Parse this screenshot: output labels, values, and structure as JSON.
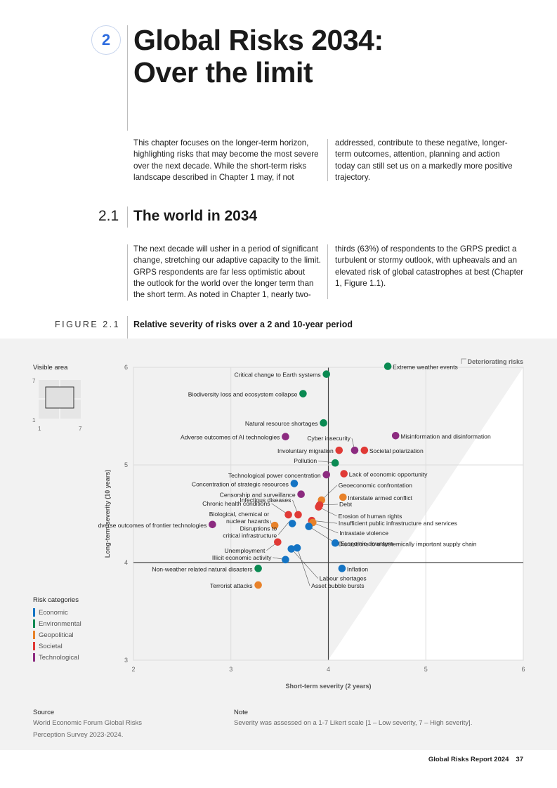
{
  "chapter": {
    "number": "2",
    "title_line1": "Global Risks 2034:",
    "title_line2": "Over the limit"
  },
  "intro": {
    "left": [
      "This chapter focuses on the longer-term horizon,",
      "highlighting risks that may become the most severe",
      "over the next decade. While the short-term risks",
      "landscape described in Chapter 1 may, if not"
    ],
    "right": [
      "addressed, contribute to these negative, longer-",
      "term outcomes, attention, planning and action",
      "today can still set us on a markedly more positive",
      "trajectory."
    ]
  },
  "section": {
    "number": "2.1",
    "title": "The world in 2034",
    "left": [
      "The next decade will usher in a period of significant",
      "change, stretching our adaptive capacity to the limit.",
      "GRPS respondents are far less optimistic about",
      "the outlook for the world over the longer term than",
      "the short term. As noted in Chapter 1, nearly two-"
    ],
    "right": [
      "thirds (63%) of respondents to the GRPS predict a",
      "turbulent or stormy outlook, with upheavals and an",
      "elevated risk of global catastrophes at best (Chapter",
      "1, Figure 1.1)."
    ]
  },
  "figure": {
    "label": "FIGURE 2.1",
    "title": "Relative severity of risks over a 2 and 10-year period",
    "visible_area_label": "Visible area",
    "mini_ticks": {
      "y_top": "7",
      "y_bottom": "1",
      "x_left": "1",
      "x_right": "7"
    },
    "categories_title": "Risk categories",
    "categories": [
      {
        "name": "Economic",
        "color": "#1474c4"
      },
      {
        "name": "Environmental",
        "color": "#0a8a52"
      },
      {
        "name": "Geopolitical",
        "color": "#e8822a"
      },
      {
        "name": "Societal",
        "color": "#e03a36"
      },
      {
        "name": "Technological",
        "color": "#8c2b80"
      }
    ]
  },
  "chart_data": {
    "type": "scatter",
    "title": "Relative severity of risks over a 2 and 10-year period",
    "xlabel": "Short-term severity (2 years)",
    "ylabel": "Long-term severity (10 years)",
    "xlim": [
      2,
      6
    ],
    "ylim": [
      3,
      6
    ],
    "xticks": [
      "2",
      "3",
      "4",
      "5",
      "6"
    ],
    "yticks": [
      "3",
      "4",
      "5",
      "6"
    ],
    "legend_note": "Deteriorating risks",
    "points": [
      {
        "label": "Extreme weather events",
        "x": 4.61,
        "y": 6.01,
        "category": "Environmental"
      },
      {
        "label": "Critical change to Earth systems",
        "x": 3.98,
        "y": 5.93,
        "category": "Environmental"
      },
      {
        "label": "Biodiversity loss and ecosystem collapse",
        "x": 3.74,
        "y": 5.73,
        "category": "Environmental"
      },
      {
        "label": "Natural resource shortages",
        "x": 3.95,
        "y": 5.43,
        "category": "Environmental"
      },
      {
        "label": "Misinformation and disinformation",
        "x": 4.69,
        "y": 5.3,
        "category": "Technological"
      },
      {
        "label": "Adverse outcomes of AI technologies",
        "x": 3.56,
        "y": 5.29,
        "category": "Technological"
      },
      {
        "label": "Cyber insecurity",
        "x": 4.27,
        "y": 5.15,
        "category": "Technological"
      },
      {
        "label": "Involuntary migration",
        "x": 4.11,
        "y": 5.15,
        "category": "Societal"
      },
      {
        "label": "Societal polarization",
        "x": 4.37,
        "y": 5.15,
        "category": "Societal"
      },
      {
        "label": "Pollution",
        "x": 4.07,
        "y": 5.02,
        "category": "Environmental"
      },
      {
        "label": "Lack of economic opportunity",
        "x": 4.16,
        "y": 4.91,
        "category": "Societal"
      },
      {
        "label": "Technological power concentration",
        "x": 3.98,
        "y": 4.9,
        "category": "Technological"
      },
      {
        "label": "Concentration of strategic resources",
        "x": 3.65,
        "y": 4.81,
        "category": "Economic"
      },
      {
        "label": "Geoeconomic confrontation",
        "x": 3.93,
        "y": 4.64,
        "category": "Geopolitical"
      },
      {
        "label": "Interstate armed conflict",
        "x": 4.15,
        "y": 4.67,
        "category": "Geopolitical"
      },
      {
        "label": "Censorship and surveillance",
        "x": 3.72,
        "y": 4.7,
        "category": "Technological"
      },
      {
        "label": "Debt",
        "x": 3.91,
        "y": 4.59,
        "category": "Societal"
      },
      {
        "label": "Erosion of human rights",
        "x": 3.9,
        "y": 4.57,
        "category": "Societal"
      },
      {
        "label": "Infectious diseases",
        "x": 3.69,
        "y": 4.49,
        "category": "Societal"
      },
      {
        "label": "Chronic health conditions",
        "x": 3.59,
        "y": 4.49,
        "category": "Societal"
      },
      {
        "label": "Biological, chemical or nuclear hazards",
        "x": 3.45,
        "y": 4.38,
        "category": "Geopolitical"
      },
      {
        "label": "Adverse outcomes of frontier technologies",
        "x": 2.81,
        "y": 4.39,
        "category": "Technological"
      },
      {
        "label": "Insufficient public infrastructure and services",
        "x": 3.83,
        "y": 4.43,
        "category": "Societal"
      },
      {
        "label": "Intrastate violence",
        "x": 3.84,
        "y": 4.41,
        "category": "Geopolitical"
      },
      {
        "label": "Disruptions to critical infrastructure",
        "x": 3.63,
        "y": 4.4,
        "category": "Economic"
      },
      {
        "label": "Disruptions to a systemically important supply chain",
        "x": 3.8,
        "y": 4.37,
        "category": "Economic"
      },
      {
        "label": "Unemployment",
        "x": 3.48,
        "y": 4.21,
        "category": "Societal"
      },
      {
        "label": "Economic downturn",
        "x": 4.07,
        "y": 4.2,
        "category": "Economic"
      },
      {
        "label": "Labour shortages",
        "x": 3.62,
        "y": 4.14,
        "category": "Economic"
      },
      {
        "label": "Asset bubble bursts",
        "x": 3.68,
        "y": 4.15,
        "category": "Economic"
      },
      {
        "label": "Illicit economic activity",
        "x": 3.56,
        "y": 4.03,
        "category": "Economic"
      },
      {
        "label": "Inflation",
        "x": 4.14,
        "y": 3.94,
        "category": "Economic"
      },
      {
        "label": "Non-weather related natural disasters",
        "x": 3.28,
        "y": 3.94,
        "category": "Environmental"
      },
      {
        "label": "Terrorist attacks",
        "x": 3.28,
        "y": 3.77,
        "category": "Geopolitical"
      }
    ]
  },
  "source": {
    "heading": "Source",
    "lines": [
      "World Economic Forum Global Risks",
      "Perception Survey 2023-2024."
    ]
  },
  "note": {
    "heading": "Note",
    "text": "Severity was assessed on a 1-7 Likert scale [1 – Low severity, 7 – High severity]."
  },
  "footer": {
    "report": "Global Risks Report 2024",
    "page": "37"
  }
}
